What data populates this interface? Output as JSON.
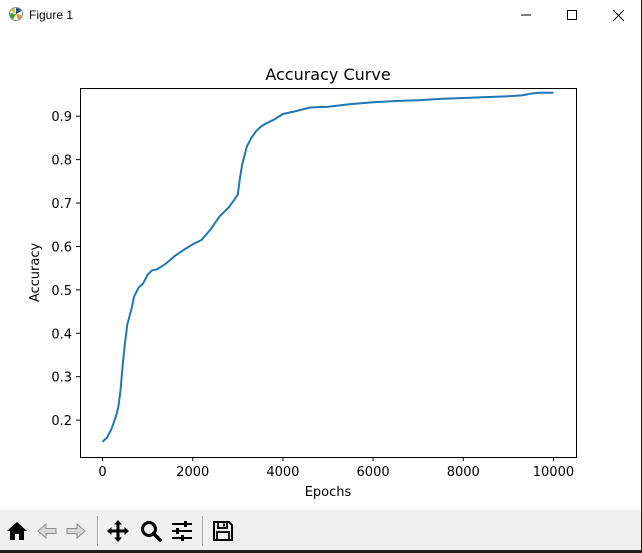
{
  "window": {
    "title": "Figure 1",
    "icon": "matplotlib-icon",
    "controls": [
      "minimize-icon",
      "maximize-icon",
      "close-icon"
    ]
  },
  "toolbar": {
    "buttons": [
      "home-icon",
      "back-icon",
      "forward-icon",
      "pan-icon",
      "zoom-icon",
      "configure-subplots-icon",
      "save-icon"
    ]
  },
  "chart_data": {
    "type": "line",
    "title": "Accuracy Curve",
    "xlabel": "Epochs",
    "ylabel": "Accuracy",
    "xlim": [
      -500,
      10500
    ],
    "ylim": [
      0.115,
      0.965
    ],
    "xticks": [
      0,
      2000,
      4000,
      6000,
      8000,
      10000
    ],
    "xtick_labels": [
      "0",
      "2000",
      "4000",
      "6000",
      "8000",
      "10000"
    ],
    "yticks": [
      0.2,
      0.3,
      0.4,
      0.5,
      0.6,
      0.7,
      0.8,
      0.9
    ],
    "ytick_labels": [
      "0.2",
      "0.3",
      "0.4",
      "0.5",
      "0.6",
      "0.7",
      "0.8",
      "0.9"
    ],
    "grid": false,
    "line_color": "#1f77b4",
    "series": [
      {
        "x": [
          0,
          50,
          100,
          150,
          200,
          250,
          300,
          350,
          400,
          450,
          500,
          550,
          600,
          650,
          700,
          750,
          800,
          900,
          1000,
          1100,
          1200,
          1400,
          1600,
          1800,
          2000,
          2200,
          2400,
          2600,
          2800,
          2950,
          3000,
          3050,
          3100,
          3200,
          3300,
          3400,
          3500,
          3600,
          3800,
          4000,
          4300,
          4600,
          5000,
          5500,
          6000,
          6500,
          7000,
          7500,
          8000,
          8500,
          9000,
          9300,
          9500,
          9700,
          10000
        ],
        "y": [
          0.15,
          0.155,
          0.16,
          0.17,
          0.18,
          0.195,
          0.21,
          0.23,
          0.27,
          0.33,
          0.38,
          0.42,
          0.44,
          0.46,
          0.485,
          0.495,
          0.505,
          0.515,
          0.535,
          0.545,
          0.547,
          0.56,
          0.578,
          0.592,
          0.605,
          0.615,
          0.64,
          0.67,
          0.69,
          0.712,
          0.72,
          0.76,
          0.79,
          0.83,
          0.85,
          0.865,
          0.875,
          0.882,
          0.892,
          0.905,
          0.912,
          0.92,
          0.922,
          0.928,
          0.932,
          0.935,
          0.937,
          0.94,
          0.942,
          0.944,
          0.946,
          0.948,
          0.952,
          0.954,
          0.954
        ]
      }
    ]
  }
}
